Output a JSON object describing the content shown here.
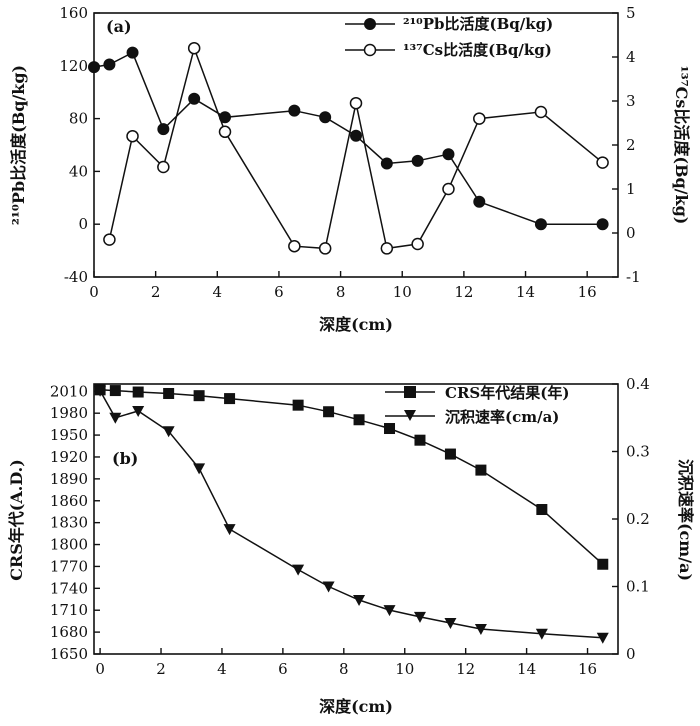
{
  "chart_data": [
    {
      "type": "line",
      "panel_label": "(a)",
      "xlabel": "深度(cm)",
      "xlim": [
        0,
        17
      ],
      "x_ticks": [
        "0",
        "2",
        "4",
        "6",
        "8",
        "10",
        "12",
        "14",
        "16"
      ],
      "ylabel_left": "²¹⁰Pb比活度(Bq/kg)",
      "ylim_left": [
        -40,
        160
      ],
      "y_ticks_left": [
        "-40",
        "0",
        "40",
        "80",
        "120",
        "160"
      ],
      "ylabel_right": "¹³⁷Cs比活度(Bq/kg)",
      "ylim_right": [
        -1,
        5
      ],
      "y_ticks_right": [
        "-1",
        "0",
        "1",
        "2",
        "3",
        "4",
        "5"
      ],
      "series": [
        {
          "name": "²¹⁰Pb比活度(Bq/kg)",
          "axis": "left",
          "marker": "filled-circle",
          "x": [
            0,
            0.5,
            1.25,
            2.25,
            3.25,
            4.25,
            6.5,
            7.5,
            8.5,
            9.5,
            10.5,
            11.5,
            12.5,
            14.5,
            16.5
          ],
          "y": [
            119,
            121,
            130,
            72,
            95,
            81,
            86,
            81,
            67,
            46,
            48,
            53,
            17,
            0,
            0
          ]
        },
        {
          "name": "¹³⁷Cs比活度(Bq/kg)",
          "axis": "right",
          "marker": "open-circle",
          "x": [
            0.5,
            1.25,
            2.25,
            3.25,
            4.25,
            6.5,
            7.5,
            8.5,
            9.5,
            10.5,
            11.5,
            12.5,
            14.5,
            16.5
          ],
          "y": [
            -0.15,
            2.2,
            1.5,
            4.2,
            2.3,
            -0.3,
            -0.35,
            2.95,
            -0.35,
            -0.25,
            1.0,
            2.6,
            2.75,
            1.6
          ]
        }
      ]
    },
    {
      "type": "line",
      "panel_label": "(b)",
      "xlabel": "深度(cm)",
      "xlim": [
        -0.2,
        17
      ],
      "x_ticks": [
        "0",
        "2",
        "4",
        "6",
        "8",
        "10",
        "12",
        "14",
        "16"
      ],
      "ylabel_left": "CRS年代(A.D.)",
      "ylim_left": [
        1650,
        2020
      ],
      "y_ticks_left": [
        "1650",
        "1680",
        "1710",
        "1740",
        "1770",
        "1800",
        "1830",
        "1860",
        "1890",
        "1920",
        "1950",
        "1980",
        "2010"
      ],
      "ylabel_right": "沉积速率(cm/a)",
      "ylim_right": [
        0,
        0.4
      ],
      "y_ticks_right": [
        "0",
        "0.1",
        "0.2",
        "0.3",
        "0.4"
      ],
      "series": [
        {
          "name": "CRS年代结果(年)",
          "axis": "left",
          "marker": "filled-square",
          "x": [
            0,
            0.5,
            1.25,
            2.25,
            3.25,
            4.25,
            6.5,
            7.5,
            8.5,
            9.5,
            10.5,
            11.5,
            12.5,
            14.5,
            16.5
          ],
          "y": [
            2012,
            2011,
            2009,
            2007,
            2004,
            2000,
            1991,
            1982,
            1971,
            1959,
            1943,
            1924,
            1902,
            1848,
            1773
          ]
        },
        {
          "name": "沉积速率(cm/a)",
          "axis": "right",
          "marker": "filled-triangle-down",
          "x": [
            0,
            0.5,
            1.25,
            2.25,
            3.25,
            4.25,
            6.5,
            7.5,
            8.5,
            9.5,
            10.5,
            11.5,
            12.5,
            14.5,
            16.5
          ],
          "y": [
            0.39,
            0.35,
            0.36,
            0.33,
            0.275,
            0.185,
            0.125,
            0.1,
            0.08,
            0.065,
            0.055,
            0.046,
            0.037,
            0.03,
            0.024
          ]
        }
      ]
    }
  ]
}
